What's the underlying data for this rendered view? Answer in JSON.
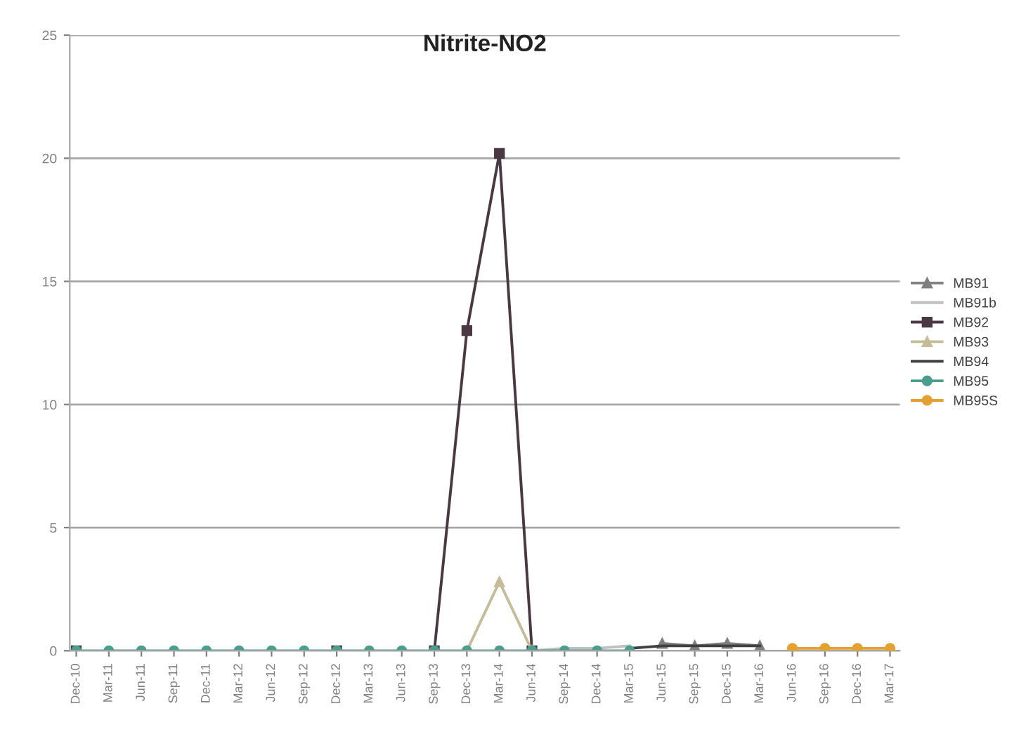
{
  "chart_data": {
    "type": "line",
    "title": "Nitrite-NO2",
    "categories": [
      "Dec-10",
      "Mar-11",
      "Jun-11",
      "Sep-11",
      "Dec-11",
      "Mar-12",
      "Jun-12",
      "Sep-12",
      "Dec-12",
      "Mar-13",
      "Jun-13",
      "Sep-13",
      "Dec-13",
      "Mar-14",
      "Jun-14",
      "Sep-14",
      "Dec-14",
      "Mar-15",
      "Jun-15",
      "Sep-15",
      "Dec-15",
      "Mar-16",
      "Jun-16",
      "Sep-16",
      "Dec-16",
      "Mar-17"
    ],
    "series": [
      {
        "name": "MB91",
        "color": "#7f7f7f",
        "marker": "triangle",
        "values": [
          null,
          null,
          null,
          null,
          null,
          null,
          null,
          null,
          null,
          null,
          null,
          null,
          null,
          null,
          null,
          null,
          null,
          null,
          0.3,
          0.2,
          0.3,
          0.2,
          null,
          null,
          null,
          null
        ]
      },
      {
        "name": "MB91b",
        "color": "#bfbfbf",
        "marker": "none",
        "values": [
          null,
          null,
          null,
          null,
          null,
          null,
          null,
          null,
          null,
          null,
          null,
          null,
          null,
          null,
          0,
          0.1,
          0.1,
          0.2,
          null,
          null,
          null,
          null,
          null,
          null,
          null,
          null
        ]
      },
      {
        "name": "MB92",
        "color": "#4a3942",
        "marker": "square",
        "values": [
          0,
          null,
          null,
          null,
          null,
          null,
          null,
          null,
          0,
          null,
          null,
          0,
          13,
          20.2,
          0,
          null,
          null,
          null,
          null,
          null,
          null,
          null,
          null,
          null,
          null,
          null
        ]
      },
      {
        "name": "MB93",
        "color": "#c4bd97",
        "marker": "triangle",
        "values": [
          null,
          null,
          null,
          null,
          null,
          null,
          null,
          null,
          null,
          null,
          null,
          null,
          0,
          2.8,
          0,
          null,
          null,
          null,
          null,
          null,
          null,
          null,
          null,
          null,
          null,
          null
        ]
      },
      {
        "name": "MB94",
        "color": "#404040",
        "marker": "none",
        "values": [
          null,
          null,
          null,
          null,
          null,
          null,
          null,
          null,
          null,
          null,
          null,
          null,
          null,
          null,
          null,
          null,
          null,
          0.1,
          0.2,
          0.2,
          0.2,
          0.2,
          null,
          null,
          null,
          null
        ]
      },
      {
        "name": "MB95",
        "color": "#4a9e8c",
        "marker": "circle",
        "values": [
          0,
          0,
          0,
          0,
          0,
          0,
          0,
          0,
          0,
          0,
          0,
          0,
          0,
          0,
          0,
          0,
          0,
          0,
          null,
          null,
          null,
          null,
          null,
          null,
          null,
          null
        ]
      },
      {
        "name": "MB95S",
        "color": "#e3a12f",
        "marker": "circle",
        "values": [
          null,
          null,
          null,
          null,
          null,
          null,
          null,
          null,
          null,
          null,
          null,
          null,
          null,
          null,
          null,
          null,
          null,
          null,
          null,
          null,
          null,
          null,
          0.1,
          0.1,
          0.1,
          0.1
        ]
      }
    ],
    "ylim": [
      0,
      25
    ],
    "yticks": [
      0,
      5,
      10,
      15,
      20,
      25
    ],
    "grid": "y",
    "legend": "right",
    "line_style": "solid"
  }
}
